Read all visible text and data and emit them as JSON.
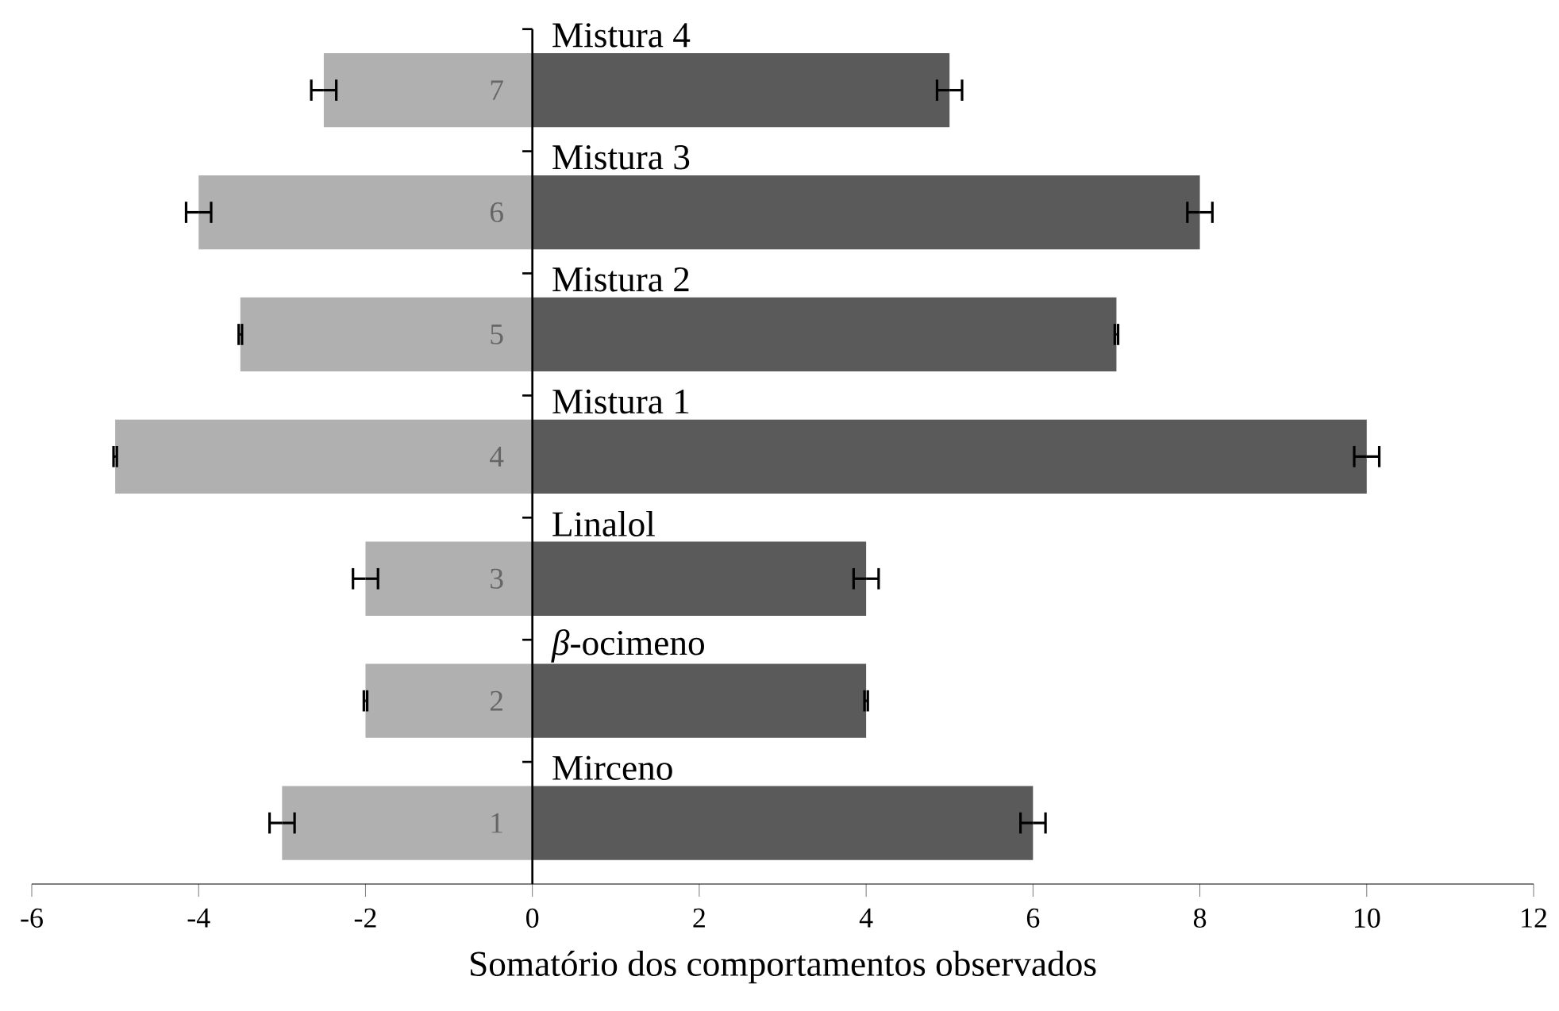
{
  "chart_data": {
    "type": "bar",
    "orientation": "horizontal",
    "xlabel": "Somatório dos comportamentos observados",
    "categories": [
      "Mistura 4",
      "Mistura 3",
      "Mistura 2",
      "Mistura 1",
      "Linalol",
      "*β*-ocimeno",
      "Mirceno"
    ],
    "series": [
      {
        "color": "#b0b0b0",
        "values": [
          -2.5,
          -4,
          -3.5,
          -5,
          -2,
          -2,
          -3
        ],
        "errors": [
          0.15,
          0.15,
          0.02,
          0.02,
          0.15,
          0.02,
          0.15
        ]
      },
      {
        "color": "#5a5a5a",
        "values": [
          5,
          8,
          7,
          10,
          4,
          4,
          6
        ],
        "errors": [
          0.15,
          0.15,
          0.02,
          0.15,
          0.15,
          0.02,
          0.15
        ]
      }
    ],
    "annotations": [
      "7",
      "6",
      "5",
      "4",
      "3",
      "2",
      "1"
    ],
    "stacked": true,
    "xlim": [
      -6,
      12
    ],
    "xticks": [
      -6,
      -4,
      -2,
      0,
      2,
      4,
      6,
      8,
      10,
      12
    ],
    "grid": false
  }
}
